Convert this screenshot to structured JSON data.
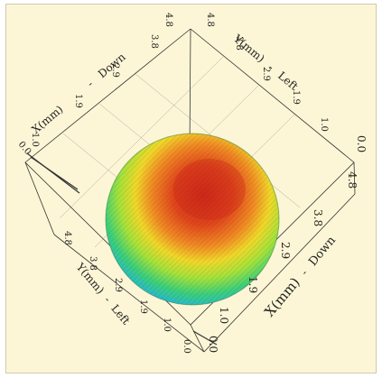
{
  "chart_data": {
    "type": "heatmap",
    "title": "",
    "colormap": [
      "#1e5fd8",
      "#22b5e0",
      "#3dcf7a",
      "#a6e23a",
      "#f0e02a",
      "#f5a020",
      "#e8501c",
      "#cf2a1a"
    ],
    "axes": {
      "x_label": "X(mm)",
      "y_label": "Y(mm)",
      "x_direction": "Down",
      "y_direction": "Left",
      "tick_labels_x": [
        "1.0",
        "1.9",
        "2.9",
        "3.8",
        "4.8"
      ],
      "tick_labels_y": [
        "1.0",
        "1.9",
        "2.9",
        "3.8",
        "4.8"
      ],
      "zero_label": "0.0",
      "range_mm": [
        0.0,
        4.8
      ]
    },
    "surface": {
      "shape": "dome",
      "peak_color": "#cf2a1a",
      "edge_color_left": "#1e5fd8"
    }
  }
}
